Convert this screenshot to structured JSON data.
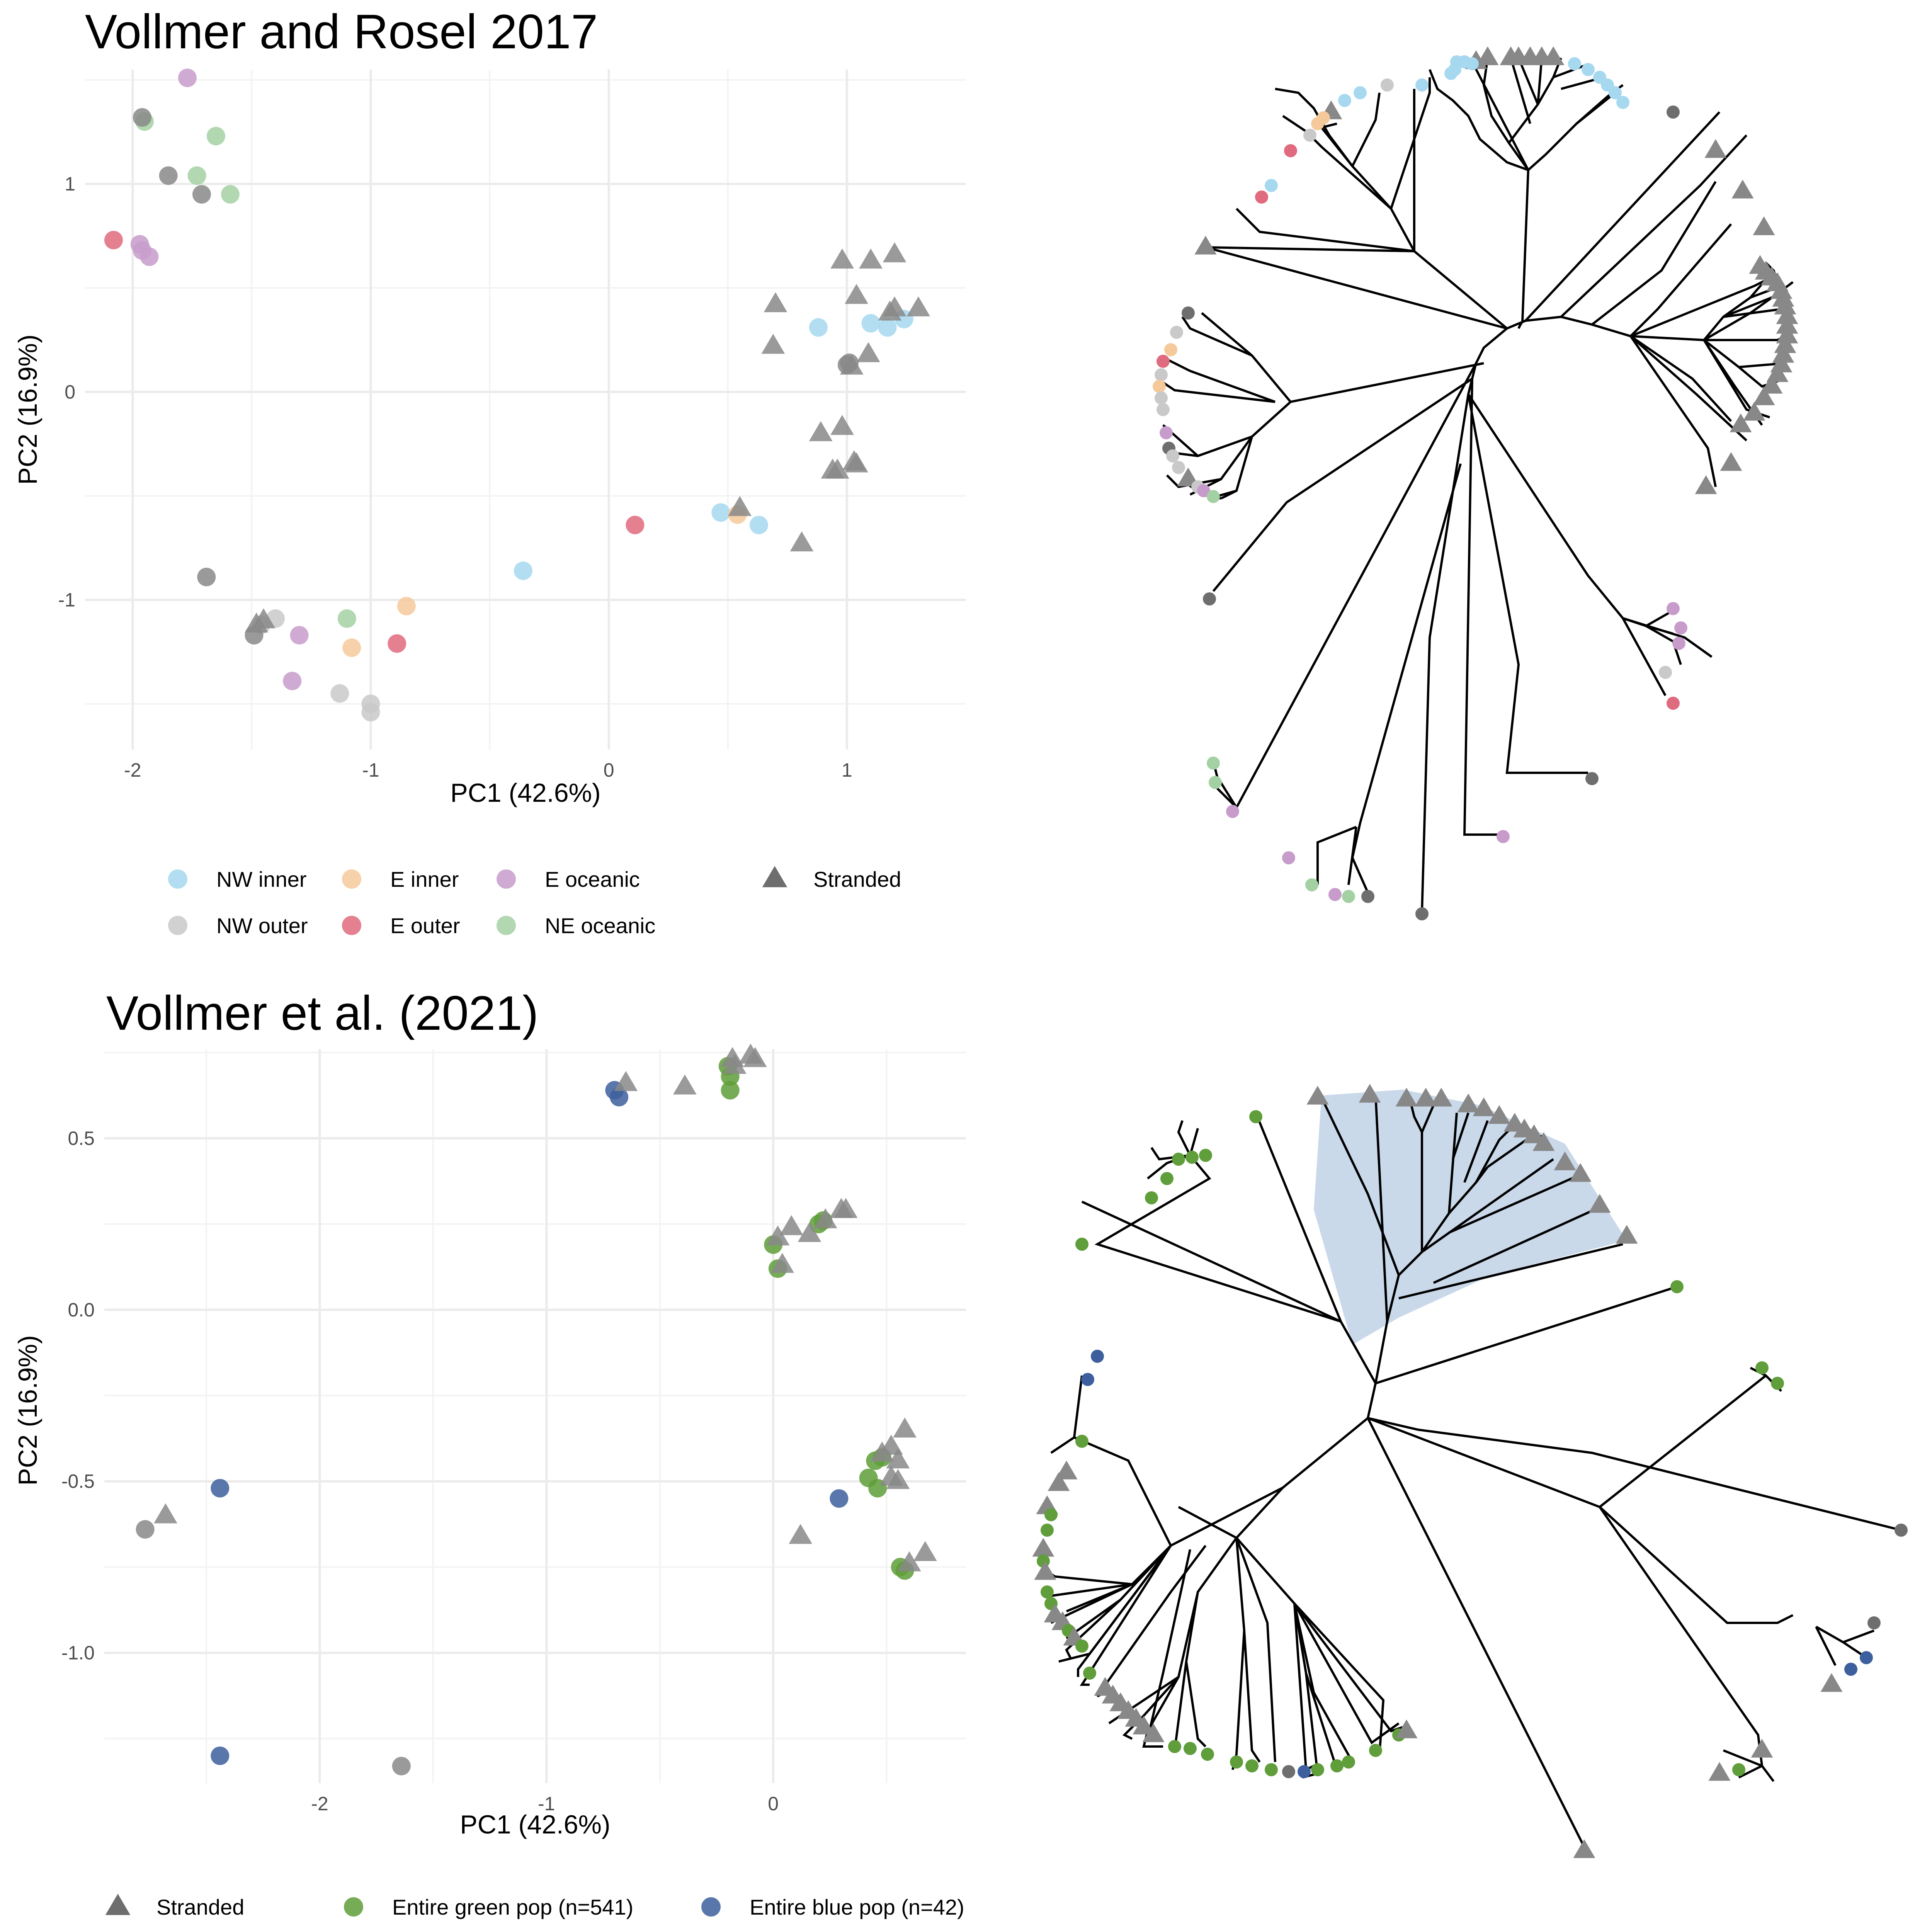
{
  "colors": {
    "nw_inner": "#a6d8f0",
    "nw_outer": "#c9c9c9",
    "e_inner": "#f6c99b",
    "e_outer": "#e06a7e",
    "e_oceanic": "#c79ccb",
    "ne_oceanic": "#a3d1a3",
    "stranded": "#888888",
    "stranded_dark": "#6e6e6e",
    "green_pop": "#5f9e3a",
    "blue_pop": "#3d5f9e",
    "grid": "#ebebeb",
    "clade_fill": "#c9d9ea"
  },
  "chart_data": [
    {
      "type": "scatter",
      "title": "Vollmer and Rosel 2017",
      "xlabel": "PC1 (42.6%)",
      "ylabel": "PC2 (16.9%)",
      "xlim": [
        -2.2,
        1.5
      ],
      "ylim": [
        -1.72,
        1.55
      ],
      "xticks": [
        -2,
        -1,
        0,
        1
      ],
      "xtick_labels": [
        "-2",
        "-1",
        "0",
        "1"
      ],
      "yticks": [
        -1,
        0,
        1
      ],
      "ytick_labels": [
        "-1",
        "0",
        "1"
      ],
      "grid": true,
      "legend_position": "bottom",
      "legend": [
        {
          "label": "NW inner",
          "color_key": "nw_inner",
          "shape": "circle"
        },
        {
          "label": "E inner",
          "color_key": "e_inner",
          "shape": "circle"
        },
        {
          "label": "E oceanic",
          "color_key": "e_oceanic",
          "shape": "circle"
        },
        {
          "label": "Stranded",
          "color_key": "stranded_dark",
          "shape": "triangle"
        },
        {
          "label": "NW outer",
          "color_key": "nw_outer",
          "shape": "circle"
        },
        {
          "label": "E outer",
          "color_key": "e_outer",
          "shape": "circle"
        },
        {
          "label": "NE oceanic",
          "color_key": "ne_oceanic",
          "shape": "circle"
        }
      ],
      "series": [
        {
          "name": "NW inner",
          "color_key": "nw_inner",
          "shape": "circle",
          "points": [
            [
              0.88,
              0.31
            ],
            [
              1.1,
              0.33
            ],
            [
              1.17,
              0.31
            ],
            [
              1.24,
              0.35
            ],
            [
              0.47,
              -0.58
            ],
            [
              0.63,
              -0.64
            ],
            [
              -0.36,
              -0.86
            ]
          ]
        },
        {
          "name": "NW outer",
          "color_key": "nw_outer",
          "shape": "circle",
          "points": [
            [
              -1.4,
              -1.09
            ],
            [
              -1.46,
              -1.12
            ],
            [
              -1.13,
              -1.45
            ],
            [
              -1.0,
              -1.5
            ],
            [
              -1.0,
              -1.54
            ]
          ]
        },
        {
          "name": "E inner",
          "color_key": "e_inner",
          "shape": "circle",
          "points": [
            [
              -0.85,
              -1.03
            ],
            [
              -1.08,
              -1.23
            ],
            [
              0.54,
              -0.59
            ]
          ]
        },
        {
          "name": "E outer",
          "color_key": "e_outer",
          "shape": "circle",
          "points": [
            [
              -2.08,
              0.73
            ],
            [
              -0.89,
              -1.21
            ],
            [
              0.11,
              -0.64
            ]
          ]
        },
        {
          "name": "E oceanic",
          "color_key": "e_oceanic",
          "shape": "circle",
          "points": [
            [
              -1.77,
              1.51
            ],
            [
              -1.97,
              0.71
            ],
            [
              -1.96,
              0.68
            ],
            [
              -1.93,
              0.65
            ],
            [
              -1.3,
              -1.17
            ],
            [
              -1.33,
              -1.39
            ]
          ]
        },
        {
          "name": "NE oceanic",
          "color_key": "ne_oceanic",
          "shape": "circle",
          "points": [
            [
              -1.95,
              1.3
            ],
            [
              -1.65,
              1.23
            ],
            [
              -1.73,
              1.04
            ],
            [
              -1.59,
              0.95
            ],
            [
              -1.1,
              -1.09
            ]
          ]
        },
        {
          "name": "",
          "color_key": "stranded",
          "shape": "circle",
          "points": [
            [
              -1.96,
              1.32
            ],
            [
              -1.85,
              1.04
            ],
            [
              -1.71,
              0.95
            ],
            [
              -1.69,
              -0.89
            ],
            [
              -1.49,
              -1.17
            ],
            [
              1.01,
              0.14
            ],
            [
              1.0,
              0.13
            ]
          ]
        },
        {
          "name": "Stranded",
          "color_key": "stranded",
          "shape": "triangle",
          "points": [
            [
              0.98,
              0.63
            ],
            [
              1.1,
              0.63
            ],
            [
              1.2,
              0.66
            ],
            [
              1.04,
              0.46
            ],
            [
              0.7,
              0.42
            ],
            [
              0.69,
              0.22
            ],
            [
              1.18,
              0.38
            ],
            [
              1.2,
              0.4
            ],
            [
              1.3,
              0.4
            ],
            [
              1.02,
              0.12
            ],
            [
              1.09,
              0.18
            ],
            [
              0.89,
              -0.2
            ],
            [
              0.98,
              -0.17
            ],
            [
              0.94,
              -0.38
            ],
            [
              0.96,
              -0.38
            ],
            [
              1.03,
              -0.34
            ],
            [
              1.04,
              -0.35
            ],
            [
              0.81,
              -0.73
            ],
            [
              0.55,
              -0.56
            ],
            [
              -1.48,
              -1.12
            ],
            [
              -1.45,
              -1.1
            ]
          ]
        }
      ]
    },
    {
      "type": "scatter",
      "title": "Vollmer et al. (2021)",
      "xlabel": "PC1 (42.6%)",
      "ylabel": "PC2 (16.9%)",
      "xlim": [
        -2.95,
        0.85
      ],
      "ylim": [
        -1.38,
        0.76
      ],
      "xticks": [
        -2,
        -1,
        0
      ],
      "xtick_labels": [
        "-2",
        "-1",
        "0"
      ],
      "yticks": [
        0.5,
        0.0,
        -0.5,
        -1.0
      ],
      "ytick_labels": [
        "0.5",
        "0.0",
        "-0.5",
        "-1.0"
      ],
      "grid": true,
      "legend_position": "bottom",
      "legend": [
        {
          "label": "Stranded",
          "color_key": "stranded_dark",
          "shape": "triangle"
        },
        {
          "label": "Entire green pop (n=541)",
          "color_key": "green_pop",
          "shape": "circle"
        },
        {
          "label": "Entire blue pop (n=42)",
          "color_key": "blue_pop",
          "shape": "circle"
        }
      ],
      "series": [
        {
          "name": "Entire green pop (n=541)",
          "color_key": "green_pop",
          "shape": "circle",
          "points": [
            [
              -0.2,
              0.71
            ],
            [
              -0.19,
              0.68
            ],
            [
              -0.19,
              0.64
            ],
            [
              0.0,
              0.19
            ],
            [
              0.02,
              0.12
            ],
            [
              0.2,
              0.25
            ],
            [
              0.22,
              0.26
            ],
            [
              0.45,
              -0.44
            ],
            [
              0.48,
              -0.43
            ],
            [
              0.42,
              -0.49
            ],
            [
              0.46,
              -0.52
            ],
            [
              0.56,
              -0.75
            ],
            [
              0.58,
              -0.76
            ]
          ]
        },
        {
          "name": "Entire blue pop (n=42)",
          "color_key": "blue_pop",
          "shape": "circle",
          "points": [
            [
              -0.7,
              0.64
            ],
            [
              -0.68,
              0.62
            ],
            [
              -2.44,
              -0.52
            ],
            [
              -2.44,
              -1.3
            ],
            [
              0.29,
              -0.55
            ]
          ]
        },
        {
          "name": "",
          "color_key": "stranded",
          "shape": "circle",
          "points": [
            [
              -2.77,
              -0.64
            ],
            [
              -1.64,
              -1.33
            ]
          ]
        },
        {
          "name": "Stranded",
          "color_key": "stranded",
          "shape": "triangle",
          "points": [
            [
              -0.65,
              0.66
            ],
            [
              -0.39,
              0.65
            ],
            [
              -0.17,
              0.71
            ],
            [
              -0.1,
              0.74
            ],
            [
              -0.08,
              0.73
            ],
            [
              -0.18,
              0.73
            ],
            [
              0.02,
              0.21
            ],
            [
              0.04,
              0.13
            ],
            [
              0.08,
              0.24
            ],
            [
              0.16,
              0.22
            ],
            [
              0.23,
              0.26
            ],
            [
              0.3,
              0.29
            ],
            [
              0.32,
              0.29
            ],
            [
              0.48,
              -0.42
            ],
            [
              0.52,
              -0.4
            ],
            [
              0.55,
              -0.44
            ],
            [
              0.58,
              -0.35
            ],
            [
              0.52,
              -0.49
            ],
            [
              0.55,
              -0.5
            ],
            [
              0.12,
              -0.66
            ],
            [
              0.6,
              -0.74
            ],
            [
              0.67,
              -0.71
            ],
            [
              -2.68,
              -0.6
            ]
          ]
        }
      ]
    }
  ]
}
